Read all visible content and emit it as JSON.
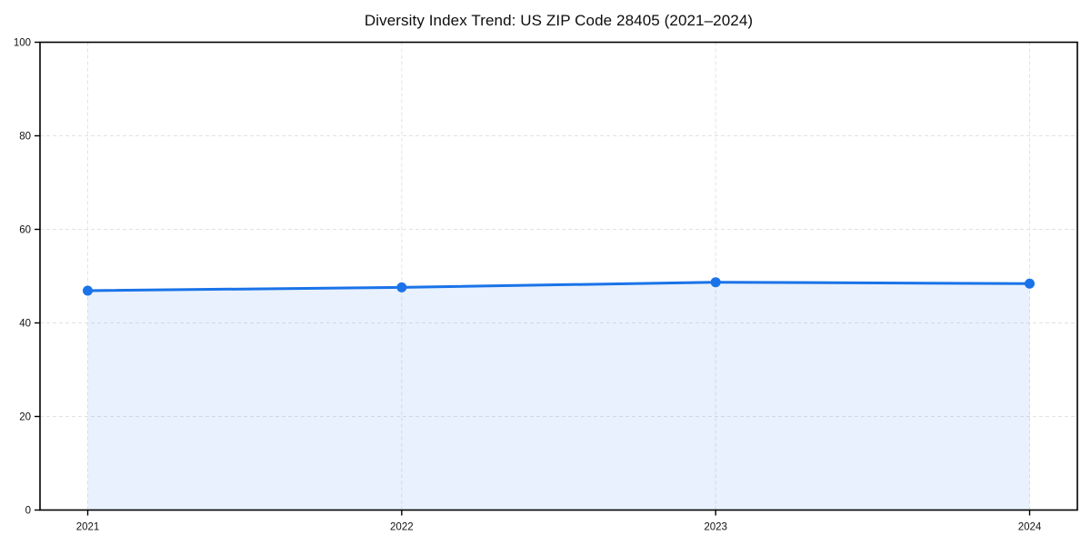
{
  "chart": {
    "title": "Diversity Index Trend: US ZIP Code 28405 (2021–2024)"
  },
  "chart_data": {
    "type": "line",
    "title": "Diversity Index Trend: US ZIP Code 28405 (2021–2024)",
    "x": [
      2021,
      2022,
      2023,
      2024
    ],
    "xtick_labels": [
      "2021",
      "2022",
      "2023",
      "2024"
    ],
    "series": [
      {
        "name": "Diversity Index",
        "values": [
          46.9,
          47.6,
          48.7,
          48.4
        ]
      }
    ],
    "xlabel": "",
    "ylabel": "",
    "ylim": [
      0,
      100
    ],
    "yticks": [
      0,
      20,
      40,
      60,
      80,
      100
    ],
    "grid": true,
    "grid_style": "dashed",
    "legend": "none",
    "area_fill": true,
    "marker": "circle",
    "line_color": "#1a73e8",
    "fill_color": "rgba(26,115,232,0.10)",
    "grid_color": "#e2e2e2",
    "spine_color": "#000000",
    "tick_label_color": "#111111"
  }
}
